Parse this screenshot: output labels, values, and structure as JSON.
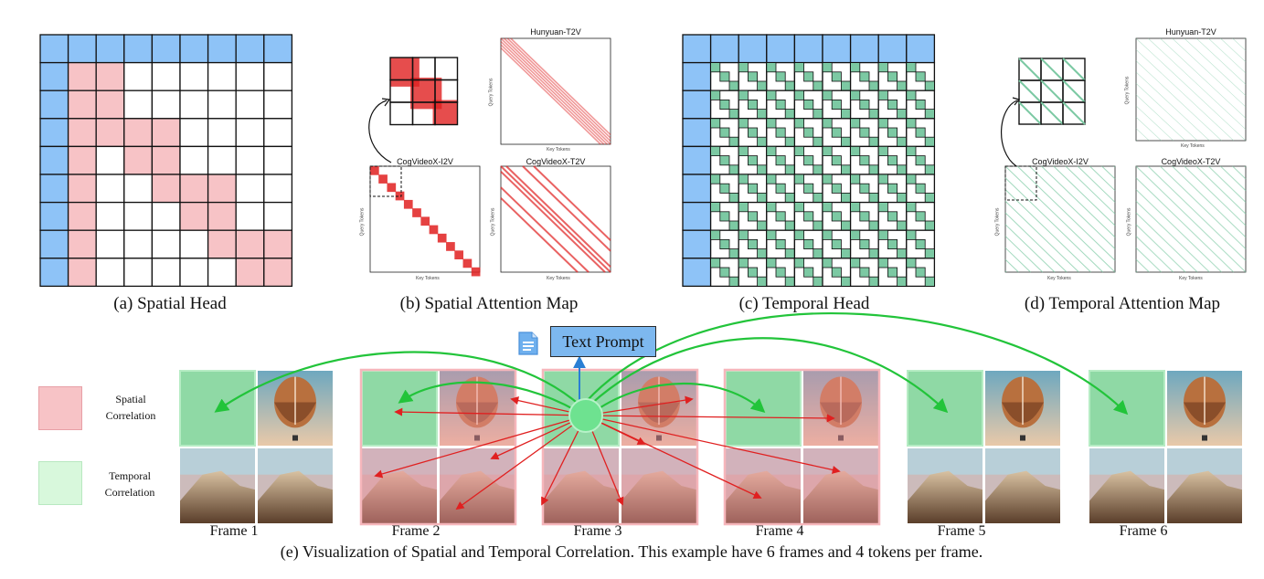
{
  "captions": {
    "a": "(a) Spatial Head",
    "b": "(b) Spatial Attention Map",
    "c": "(c) Temporal Head",
    "d": "(d) Temporal Attention Map",
    "e": "(e) Visualization of Spatial and Temporal Correlation. This example have 6 frames and 4 tokens per frame."
  },
  "spatial_maps": {
    "hunyuan": "Hunyuan-T2V",
    "cog_i2v": "CogVideoX-I2V",
    "cog_t2v": "CogVideoX-T2V",
    "query_axis": "Query Tokens",
    "key_axis": "Key Tokens"
  },
  "temporal_maps": {
    "hunyuan": "Hunyuan-T2V",
    "cog_i2v": "CogVideoX-I2V",
    "cog_t2v": "CogVideoX-T2V",
    "query_axis": "Query Tokens",
    "key_axis": "Key Tokens"
  },
  "text_prompt": "Text Prompt",
  "legend": {
    "spatial": "Spatial Correlation",
    "temporal": "Temporal Correlation"
  },
  "frames": [
    "Frame 1",
    "Frame 2",
    "Frame 3",
    "Frame 4",
    "Frame 5",
    "Frame 6"
  ],
  "colors": {
    "blue": "#8ec3f7",
    "pink": "#f7c3c6",
    "green": "#8fd9a5",
    "teal": "#7cc9a3",
    "red": "#e02020",
    "arrow_green": "#22c43a",
    "prompt_blue": "#7db8ef"
  },
  "icons": [
    "document-icon",
    "hot-air-balloon-image",
    "mountain-image"
  ]
}
